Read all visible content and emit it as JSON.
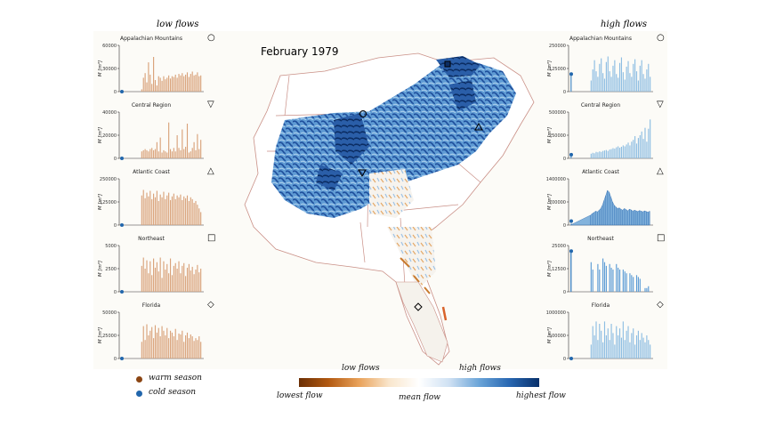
{
  "left_header": "low flows",
  "right_header": "high flows",
  "map_title": "February  1979",
  "legend": {
    "warm": {
      "label": "warm season",
      "color": "#8b4513"
    },
    "cold": {
      "label": "cold season",
      "color": "#2166ac"
    }
  },
  "colorbar": {
    "low_label": "low flows",
    "high_label": "high flows",
    "lowest_label": "lowest flow",
    "mean_label": "mean flow",
    "highest_label": "highest flow"
  },
  "ylabel": "M [m³]",
  "chart_data": [
    {
      "id": "low-appalachian",
      "type": "bar",
      "side": "low",
      "title": "Appalachian Mountains",
      "marker": "circle",
      "color": "#d9a27a",
      "ylim": [
        0,
        60000
      ],
      "yticks": [
        "0",
        "30000",
        "60000"
      ],
      "values": [
        0,
        0,
        0,
        0,
        0,
        0,
        0,
        0,
        0,
        0,
        0,
        0,
        3000,
        18000,
        24000,
        12000,
        38000,
        22000,
        10000,
        45000,
        15000,
        8000,
        20000,
        18000,
        14000,
        20000,
        16000,
        18000,
        21000,
        17000,
        20000,
        19000,
        22000,
        18000,
        23000,
        21000,
        24000,
        20000,
        22000,
        25000,
        19000,
        23000,
        26000,
        21000,
        22000,
        25000,
        20000,
        21000
      ]
    },
    {
      "id": "low-central",
      "type": "bar",
      "side": "low",
      "title": "Central Region",
      "marker": "triangle-down",
      "color": "#d9a27a",
      "ylim": [
        0,
        40000
      ],
      "yticks": [
        "0",
        "20000",
        "40000"
      ],
      "values": [
        0,
        0,
        0,
        0,
        0,
        0,
        0,
        0,
        0,
        0,
        0,
        0,
        6000,
        7000,
        8000,
        7000,
        6000,
        8000,
        9000,
        7000,
        8000,
        14000,
        6000,
        18000,
        5000,
        7000,
        6000,
        5000,
        31000,
        8000,
        6000,
        9000,
        6000,
        20000,
        9000,
        7000,
        25000,
        8000,
        10000,
        30000,
        5000,
        6000,
        9000,
        14000,
        7000,
        21000,
        8000,
        16000
      ]
    },
    {
      "id": "low-atlantic",
      "type": "bar",
      "side": "low",
      "title": "Atlantic Coast",
      "marker": "triangle-up",
      "color": "#d9a27a",
      "ylim": [
        0,
        250000
      ],
      "yticks": [
        "0",
        "125000",
        "250000"
      ],
      "values": [
        0,
        0,
        0,
        0,
        0,
        0,
        0,
        0,
        0,
        0,
        0,
        0,
        160000,
        190000,
        145000,
        175000,
        155000,
        185000,
        140000,
        170000,
        150000,
        185000,
        130000,
        165000,
        150000,
        180000,
        140000,
        160000,
        175000,
        135000,
        155000,
        170000,
        140000,
        160000,
        150000,
        165000,
        135000,
        155000,
        145000,
        160000,
        130000,
        150000,
        140000,
        120000,
        130000,
        110000,
        90000,
        70000
      ]
    },
    {
      "id": "low-northeast",
      "type": "bar",
      "side": "low",
      "title": "Northeast",
      "marker": "square",
      "color": "#d9a27a",
      "ylim": [
        0,
        5000
      ],
      "yticks": [
        "0",
        "2500",
        "5000"
      ],
      "values": [
        0,
        0,
        0,
        0,
        0,
        0,
        0,
        0,
        0,
        0,
        0,
        0,
        2800,
        3700,
        2500,
        3400,
        2000,
        3300,
        1800,
        3600,
        2600,
        3200,
        2200,
        3700,
        1500,
        3300,
        2400,
        3000,
        2000,
        3600,
        1800,
        2800,
        3100,
        2500,
        3300,
        2000,
        2800,
        3100,
        1700,
        2600,
        3000,
        2300,
        2700,
        1900,
        2400,
        2900,
        2100,
        2500
      ]
    },
    {
      "id": "low-florida",
      "type": "bar",
      "side": "low",
      "title": "Florida",
      "marker": "diamond",
      "color": "#d9a27a",
      "ylim": [
        0,
        50000
      ],
      "yticks": [
        "0",
        "25000",
        "50000"
      ],
      "values": [
        0,
        0,
        0,
        0,
        0,
        0,
        0,
        0,
        0,
        0,
        0,
        0,
        18000,
        35000,
        20000,
        37000,
        25000,
        30000,
        34000,
        22000,
        36000,
        28000,
        33000,
        24000,
        35000,
        30000,
        25000,
        33000,
        22000,
        30000,
        28000,
        24000,
        32000,
        20000,
        27000,
        26000,
        30000,
        18000,
        25000,
        28000,
        22000,
        26000,
        24000,
        19000,
        22000,
        20000,
        24000,
        18000
      ]
    },
    {
      "id": "high-appalachian",
      "type": "bar",
      "side": "high",
      "title": "Appalachian Mountains",
      "marker": "circle",
      "color": "#8dbde2",
      "ylim": [
        0,
        250000
      ],
      "yticks": [
        "0",
        "125000",
        "250000"
      ],
      "values": [
        95000,
        0,
        0,
        0,
        0,
        0,
        0,
        0,
        0,
        0,
        0,
        0,
        60000,
        120000,
        170000,
        110000,
        80000,
        150000,
        180000,
        100000,
        70000,
        160000,
        190000,
        110000,
        80000,
        140000,
        170000,
        95000,
        75000,
        155000,
        185000,
        105000,
        65000,
        135000,
        165000,
        100000,
        80000,
        150000,
        175000,
        110000,
        60000,
        140000,
        170000,
        95000,
        70000,
        120000,
        150000,
        80000
      ]
    },
    {
      "id": "high-central",
      "type": "bar",
      "side": "high",
      "title": "Central Region",
      "marker": "triangle-down",
      "color": "#8dbde2",
      "ylim": [
        0,
        500000
      ],
      "yticks": [
        "0",
        "250000",
        "500000"
      ],
      "values": [
        40000,
        0,
        0,
        0,
        0,
        0,
        0,
        0,
        0,
        0,
        0,
        0,
        50000,
        60000,
        55000,
        70000,
        65000,
        75000,
        70000,
        80000,
        85000,
        90000,
        80000,
        95000,
        100000,
        110000,
        105000,
        120000,
        130000,
        115000,
        125000,
        140000,
        130000,
        150000,
        170000,
        140000,
        180000,
        200000,
        240000,
        160000,
        220000,
        250000,
        290000,
        210000,
        330000,
        180000,
        320000,
        420000
      ]
    },
    {
      "id": "high-atlantic",
      "type": "area",
      "side": "high",
      "title": "Atlantic Coast",
      "marker": "triangle-up",
      "color": "#6fa7d8",
      "ylim": [
        0,
        1400000
      ],
      "yticks": [
        "0",
        "700000",
        "1400000"
      ],
      "values": [
        120000,
        0,
        0,
        0,
        0,
        0,
        0,
        0,
        0,
        0,
        0,
        0,
        300000,
        350000,
        380000,
        420000,
        400000,
        450000,
        500000,
        600000,
        750000,
        900000,
        1050000,
        1000000,
        850000,
        700000,
        600000,
        550000,
        500000,
        520000,
        480000,
        450000,
        500000,
        470000,
        430000,
        480000,
        460000,
        420000,
        450000,
        430000,
        410000,
        440000,
        420000,
        400000,
        430000,
        410000,
        390000,
        420000
      ]
    },
    {
      "id": "high-northeast",
      "type": "bar",
      "side": "high",
      "title": "Northeast",
      "marker": "square",
      "color": "#5b9bd5",
      "ylim": [
        0,
        25000
      ],
      "yticks": [
        "0",
        "12500",
        "25000"
      ],
      "values": [
        22000,
        0,
        0,
        0,
        0,
        0,
        0,
        0,
        0,
        0,
        0,
        0,
        16000,
        12000,
        0,
        0,
        15000,
        12000,
        0,
        18000,
        16000,
        14000,
        0,
        15000,
        13000,
        12000,
        0,
        15000,
        13000,
        12000,
        0,
        12000,
        11000,
        10000,
        0,
        10000,
        9000,
        8000,
        0,
        9000,
        8000,
        7000,
        0,
        0,
        2000,
        2000,
        3000,
        0
      ]
    },
    {
      "id": "high-florida",
      "type": "bar",
      "side": "high",
      "title": "Florida",
      "marker": "diamond",
      "color": "#8dbde2",
      "ylim": [
        0,
        1000000
      ],
      "yticks": [
        "0",
        "500000",
        "1000000"
      ],
      "values": [
        0,
        0,
        0,
        0,
        0,
        0,
        0,
        0,
        0,
        0,
        0,
        0,
        300000,
        700000,
        500000,
        800000,
        400000,
        750000,
        600000,
        350000,
        800000,
        500000,
        650000,
        400000,
        750000,
        550000,
        300000,
        700000,
        500000,
        650000,
        450000,
        800000,
        400000,
        600000,
        700000,
        350000,
        550000,
        650000,
        300000,
        500000,
        600000,
        400000,
        550000,
        450000,
        350000,
        500000,
        400000,
        300000
      ]
    }
  ]
}
